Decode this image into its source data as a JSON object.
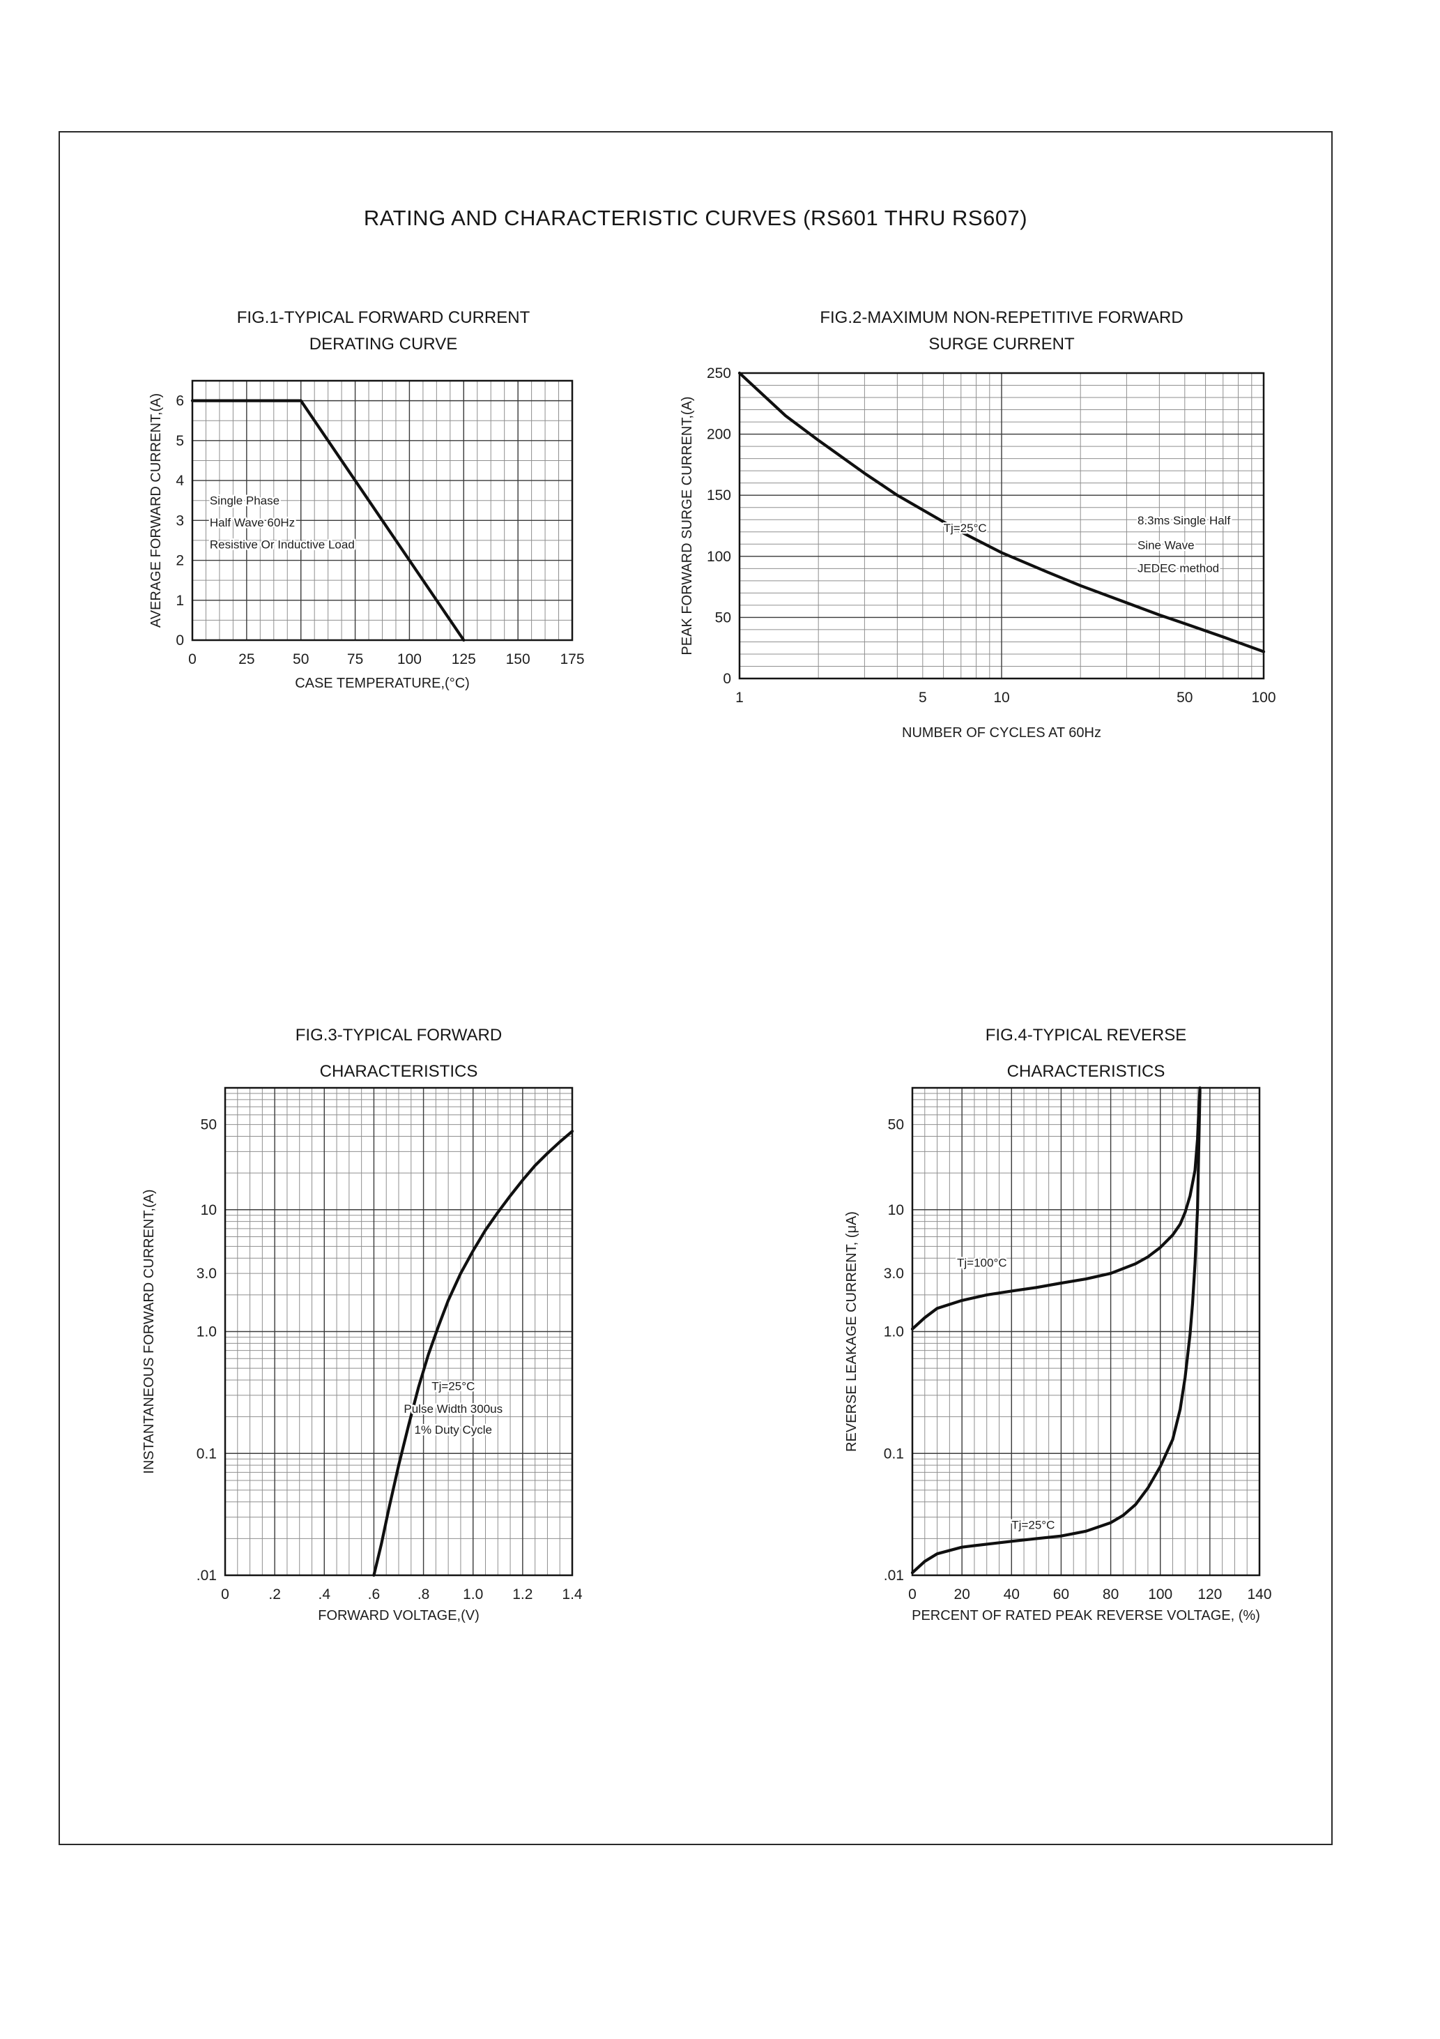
{
  "page": {
    "title": "RATING AND CHARACTERISTIC CURVES (RS601 THRU RS607)"
  },
  "chart_data": [
    {
      "id": "fig1",
      "type": "line",
      "title_lines": [
        "FIG.1-TYPICAL FORWARD CURRENT",
        "DERATING CURVE"
      ],
      "x": {
        "scale": "linear",
        "min": 0,
        "max": 175,
        "minor_step": 6.25,
        "ticks": [
          0,
          25,
          50,
          75,
          100,
          125,
          150,
          175
        ],
        "tick_labels": [
          "0",
          "25",
          "50",
          "75",
          "100",
          "125",
          "150",
          "175"
        ],
        "label": "CASE TEMPERATURE,(°C)"
      },
      "y": {
        "scale": "linear",
        "min": 0,
        "max": 6.5,
        "minor_step": 0.5,
        "ticks": [
          0,
          1,
          2,
          3,
          4,
          5,
          6
        ],
        "tick_labels": [
          "0",
          "1",
          "2",
          "3",
          "4",
          "5",
          "6"
        ],
        "label": "AVERAGE FORWARD CURRENT,(A)"
      },
      "series": [
        {
          "name": "derating-curve",
          "points": [
            [
              0,
              6
            ],
            [
              50,
              6
            ],
            [
              125,
              0
            ]
          ]
        }
      ],
      "annotations": [
        {
          "text": "Single Phase",
          "x": 8,
          "y": 3.4,
          "anchor": "start"
        },
        {
          "text": "Half Wave 60Hz",
          "x": 8,
          "y": 2.85,
          "anchor": "start"
        },
        {
          "text": "Resistive Or Inductive Load",
          "x": 8,
          "y": 2.3,
          "anchor": "start"
        }
      ]
    },
    {
      "id": "fig2",
      "type": "line",
      "title_lines": [
        "FIG.2-MAXIMUM NON-REPETITIVE FORWARD",
        "SURGE CURRENT"
      ],
      "x": {
        "scale": "log",
        "min": 1,
        "max": 100,
        "ticks": [
          1,
          5,
          10,
          50,
          100
        ],
        "tick_labels": [
          "1",
          "5",
          "10",
          "50",
          "100"
        ],
        "label": "NUMBER OF CYCLES AT 60Hz"
      },
      "y": {
        "scale": "linear",
        "min": 0,
        "max": 250,
        "minor_step": 10,
        "ticks": [
          0,
          50,
          100,
          150,
          200,
          250
        ],
        "tick_labels": [
          "0",
          "50",
          "100",
          "150",
          "200",
          "250"
        ],
        "label": "PEAK FORWARD SURGE CURRENT,(A)"
      },
      "series": [
        {
          "name": "surge-current",
          "points": [
            [
              1,
              250
            ],
            [
              1.5,
              215
            ],
            [
              2,
              195
            ],
            [
              3,
              168
            ],
            [
              4,
              150
            ],
            [
              5,
              138
            ],
            [
              7,
              120
            ],
            [
              10,
              103
            ],
            [
              15,
              87
            ],
            [
              20,
              76
            ],
            [
              30,
              62
            ],
            [
              40,
              52
            ],
            [
              50,
              45
            ],
            [
              70,
              34
            ],
            [
              100,
              22
            ]
          ]
        }
      ],
      "annotations": [
        {
          "text": "Tj=25°C",
          "x": 6,
          "y": 120,
          "anchor": "start"
        },
        {
          "text": "8.3ms Single Half",
          "x": 33,
          "y": 126,
          "anchor": "start"
        },
        {
          "text": "Sine Wave",
          "x": 33,
          "y": 106,
          "anchor": "start"
        },
        {
          "text": "JEDEC method",
          "x": 33,
          "y": 87,
          "anchor": "start"
        }
      ]
    },
    {
      "id": "fig3",
      "type": "line",
      "title_lines": [
        "FIG.3-TYPICAL FORWARD",
        "CHARACTERISTICS"
      ],
      "x": {
        "scale": "linear",
        "min": 0,
        "max": 1.4,
        "minor_step": 0.05,
        "ticks": [
          0,
          0.2,
          0.4,
          0.6,
          0.8,
          1.0,
          1.2,
          1.4
        ],
        "tick_labels": [
          "0",
          ".2",
          ".4",
          ".6",
          ".8",
          "1.0",
          "1.2",
          "1.4"
        ],
        "label": "FORWARD VOLTAGE,(V)"
      },
      "y": {
        "scale": "log",
        "min": 0.01,
        "max": 100,
        "ticks": [
          50,
          10,
          3,
          1,
          0.1,
          0.01
        ],
        "tick_labels": [
          "50",
          "10",
          "3.0",
          "1.0",
          "0.1",
          ".01"
        ],
        "label": "INSTANTANEOUS FORWARD CURRENT,(A)"
      },
      "series": [
        {
          "name": "forward-characteristic",
          "points": [
            [
              0.6,
              0.01
            ],
            [
              0.63,
              0.018
            ],
            [
              0.66,
              0.035
            ],
            [
              0.7,
              0.08
            ],
            [
              0.74,
              0.17
            ],
            [
              0.78,
              0.35
            ],
            [
              0.82,
              0.65
            ],
            [
              0.86,
              1.1
            ],
            [
              0.9,
              1.8
            ],
            [
              0.95,
              3.0
            ],
            [
              1.0,
              4.6
            ],
            [
              1.05,
              6.8
            ],
            [
              1.1,
              9.5
            ],
            [
              1.15,
              13
            ],
            [
              1.2,
              17.5
            ],
            [
              1.25,
              23
            ],
            [
              1.3,
              29
            ],
            [
              1.35,
              36
            ],
            [
              1.4,
              44
            ]
          ]
        }
      ],
      "annotations": [
        {
          "text": "Tj=25°C",
          "x": 0.92,
          "y": 0.33,
          "anchor": "middle"
        },
        {
          "text": "Pulse Width 300us",
          "x": 0.92,
          "y": 0.215,
          "anchor": "middle"
        },
        {
          "text": "1% Duty Cycle",
          "x": 0.92,
          "y": 0.145,
          "anchor": "middle"
        }
      ]
    },
    {
      "id": "fig4",
      "type": "line",
      "title_lines": [
        "FIG.4-TYPICAL REVERSE",
        "CHARACTERISTICS"
      ],
      "x": {
        "scale": "linear",
        "min": 0,
        "max": 140,
        "minor_step": 5,
        "ticks": [
          0,
          20,
          40,
          60,
          80,
          100,
          120,
          140
        ],
        "tick_labels": [
          "0",
          "20",
          "40",
          "60",
          "80",
          "100",
          "120",
          "140"
        ],
        "label": "PERCENT OF RATED PEAK REVERSE VOLTAGE, (%)"
      },
      "y": {
        "scale": "log",
        "min": 0.01,
        "max": 100,
        "ticks": [
          50,
          10,
          3,
          1,
          0.1,
          0.01
        ],
        "tick_labels": [
          "50",
          "10",
          "3.0",
          "1.0",
          "0.1",
          ".01"
        ],
        "label": "REVERSE LEAKAGE CURRENT, (μA)"
      },
      "series": [
        {
          "name": "tj-100c",
          "points": [
            [
              0,
              1.05
            ],
            [
              5,
              1.3
            ],
            [
              10,
              1.55
            ],
            [
              20,
              1.8
            ],
            [
              30,
              2.0
            ],
            [
              40,
              2.15
            ],
            [
              50,
              2.3
            ],
            [
              60,
              2.5
            ],
            [
              70,
              2.7
            ],
            [
              80,
              3.0
            ],
            [
              90,
              3.6
            ],
            [
              95,
              4.1
            ],
            [
              100,
              4.9
            ],
            [
              105,
              6.2
            ],
            [
              108,
              7.6
            ],
            [
              110,
              9.5
            ],
            [
              112,
              13
            ],
            [
              114,
              21
            ],
            [
              115,
              38
            ],
            [
              115.5,
              65
            ],
            [
              116,
              100
            ]
          ]
        },
        {
          "name": "tj-25c",
          "points": [
            [
              0,
              0.0105
            ],
            [
              5,
              0.013
            ],
            [
              10,
              0.015
            ],
            [
              20,
              0.017
            ],
            [
              30,
              0.018
            ],
            [
              40,
              0.019
            ],
            [
              50,
              0.02
            ],
            [
              60,
              0.021
            ],
            [
              70,
              0.023
            ],
            [
              80,
              0.027
            ],
            [
              85,
              0.031
            ],
            [
              90,
              0.038
            ],
            [
              95,
              0.052
            ],
            [
              100,
              0.078
            ],
            [
              105,
              0.13
            ],
            [
              108,
              0.23
            ],
            [
              110,
              0.42
            ],
            [
              112,
              0.95
            ],
            [
              113,
              1.7
            ],
            [
              114,
              3.6
            ],
            [
              115,
              10
            ],
            [
              115.5,
              32
            ],
            [
              116,
              95
            ]
          ]
        }
      ],
      "annotations": [
        {
          "text": "Tj=100°C",
          "x": 18,
          "y": 3.4,
          "anchor": "start"
        },
        {
          "text": "Tj=25°C",
          "x": 40,
          "y": 0.024,
          "anchor": "start"
        }
      ]
    }
  ]
}
